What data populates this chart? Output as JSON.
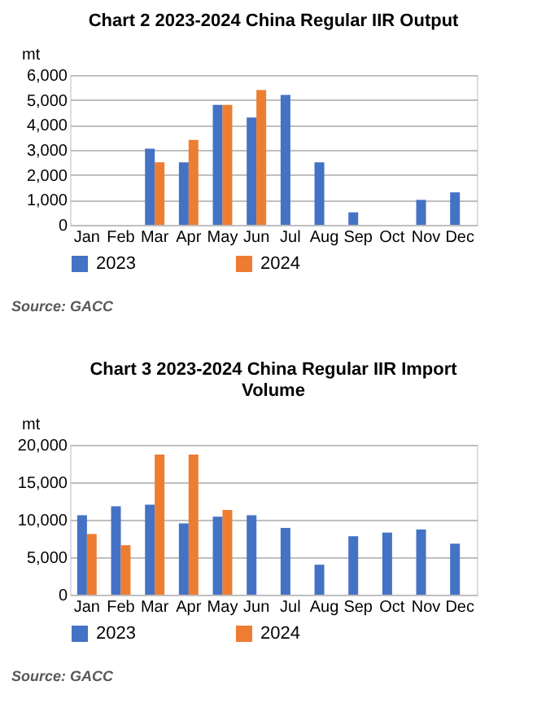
{
  "chart_data": [
    {
      "type": "bar",
      "title": "Chart 2 2023-2024  China Regular IIR Output",
      "ylabel": "mt",
      "categories": [
        "Jan",
        "Feb",
        "Mar",
        "Apr",
        "May",
        "Jun",
        "Jul",
        "Aug",
        "Sep",
        "Oct",
        "Nov",
        "Dec"
      ],
      "series": [
        {
          "name": "2023",
          "color": "#4472c4",
          "values": [
            null,
            null,
            3050,
            2500,
            4800,
            4300,
            5200,
            2500,
            500,
            null,
            1000,
            1300
          ]
        },
        {
          "name": "2024",
          "color": "#ed7d31",
          "values": [
            null,
            null,
            2500,
            3400,
            4800,
            5400,
            null,
            null,
            null,
            null,
            null,
            null
          ]
        }
      ],
      "ylim": [
        0,
        6000
      ],
      "yticks": [
        0,
        {
          "value": 1000,
          "label": "1,000"
        },
        {
          "value": 2000,
          "label": "2,000"
        },
        {
          "value": 3000,
          "label": "3,000"
        },
        {
          "value": 4000,
          "label": "4,000"
        },
        {
          "value": 5000,
          "label": "5,000"
        },
        {
          "value": 6000,
          "label": "6,000"
        }
      ],
      "grid": "y",
      "legend": "bottom",
      "annotations": [
        "Source: GACC"
      ]
    },
    {
      "type": "bar",
      "title": "Chart 3 2023-2024  China Regular IIR Import Volume",
      "ylabel": "mt",
      "categories": [
        "Jan",
        "Feb",
        "Mar",
        "Apr",
        "May",
        "Jun",
        "Jul",
        "Aug",
        "Sep",
        "Oct",
        "Nov",
        "Dec"
      ],
      "series": [
        {
          "name": "2023",
          "color": "#4472c4",
          "values": [
            10600,
            11800,
            12000,
            9500,
            10400,
            10600,
            8900,
            4000,
            7800,
            8300,
            8700,
            6800
          ]
        },
        {
          "name": "2024",
          "color": "#ed7d31",
          "values": [
            8100,
            6600,
            18700,
            18700,
            11300,
            null,
            null,
            null,
            null,
            null,
            null,
            null
          ]
        }
      ],
      "ylim": [
        0,
        20000
      ],
      "yticks": [
        0,
        {
          "value": 5000,
          "label": "5,000"
        },
        {
          "value": 10000,
          "label": "10,000"
        },
        {
          "value": 15000,
          "label": "15,000"
        },
        {
          "value": 20000,
          "label": "20,000"
        }
      ],
      "grid": "y",
      "legend": "bottom",
      "annotations": [
        "Source: GACC"
      ]
    }
  ]
}
